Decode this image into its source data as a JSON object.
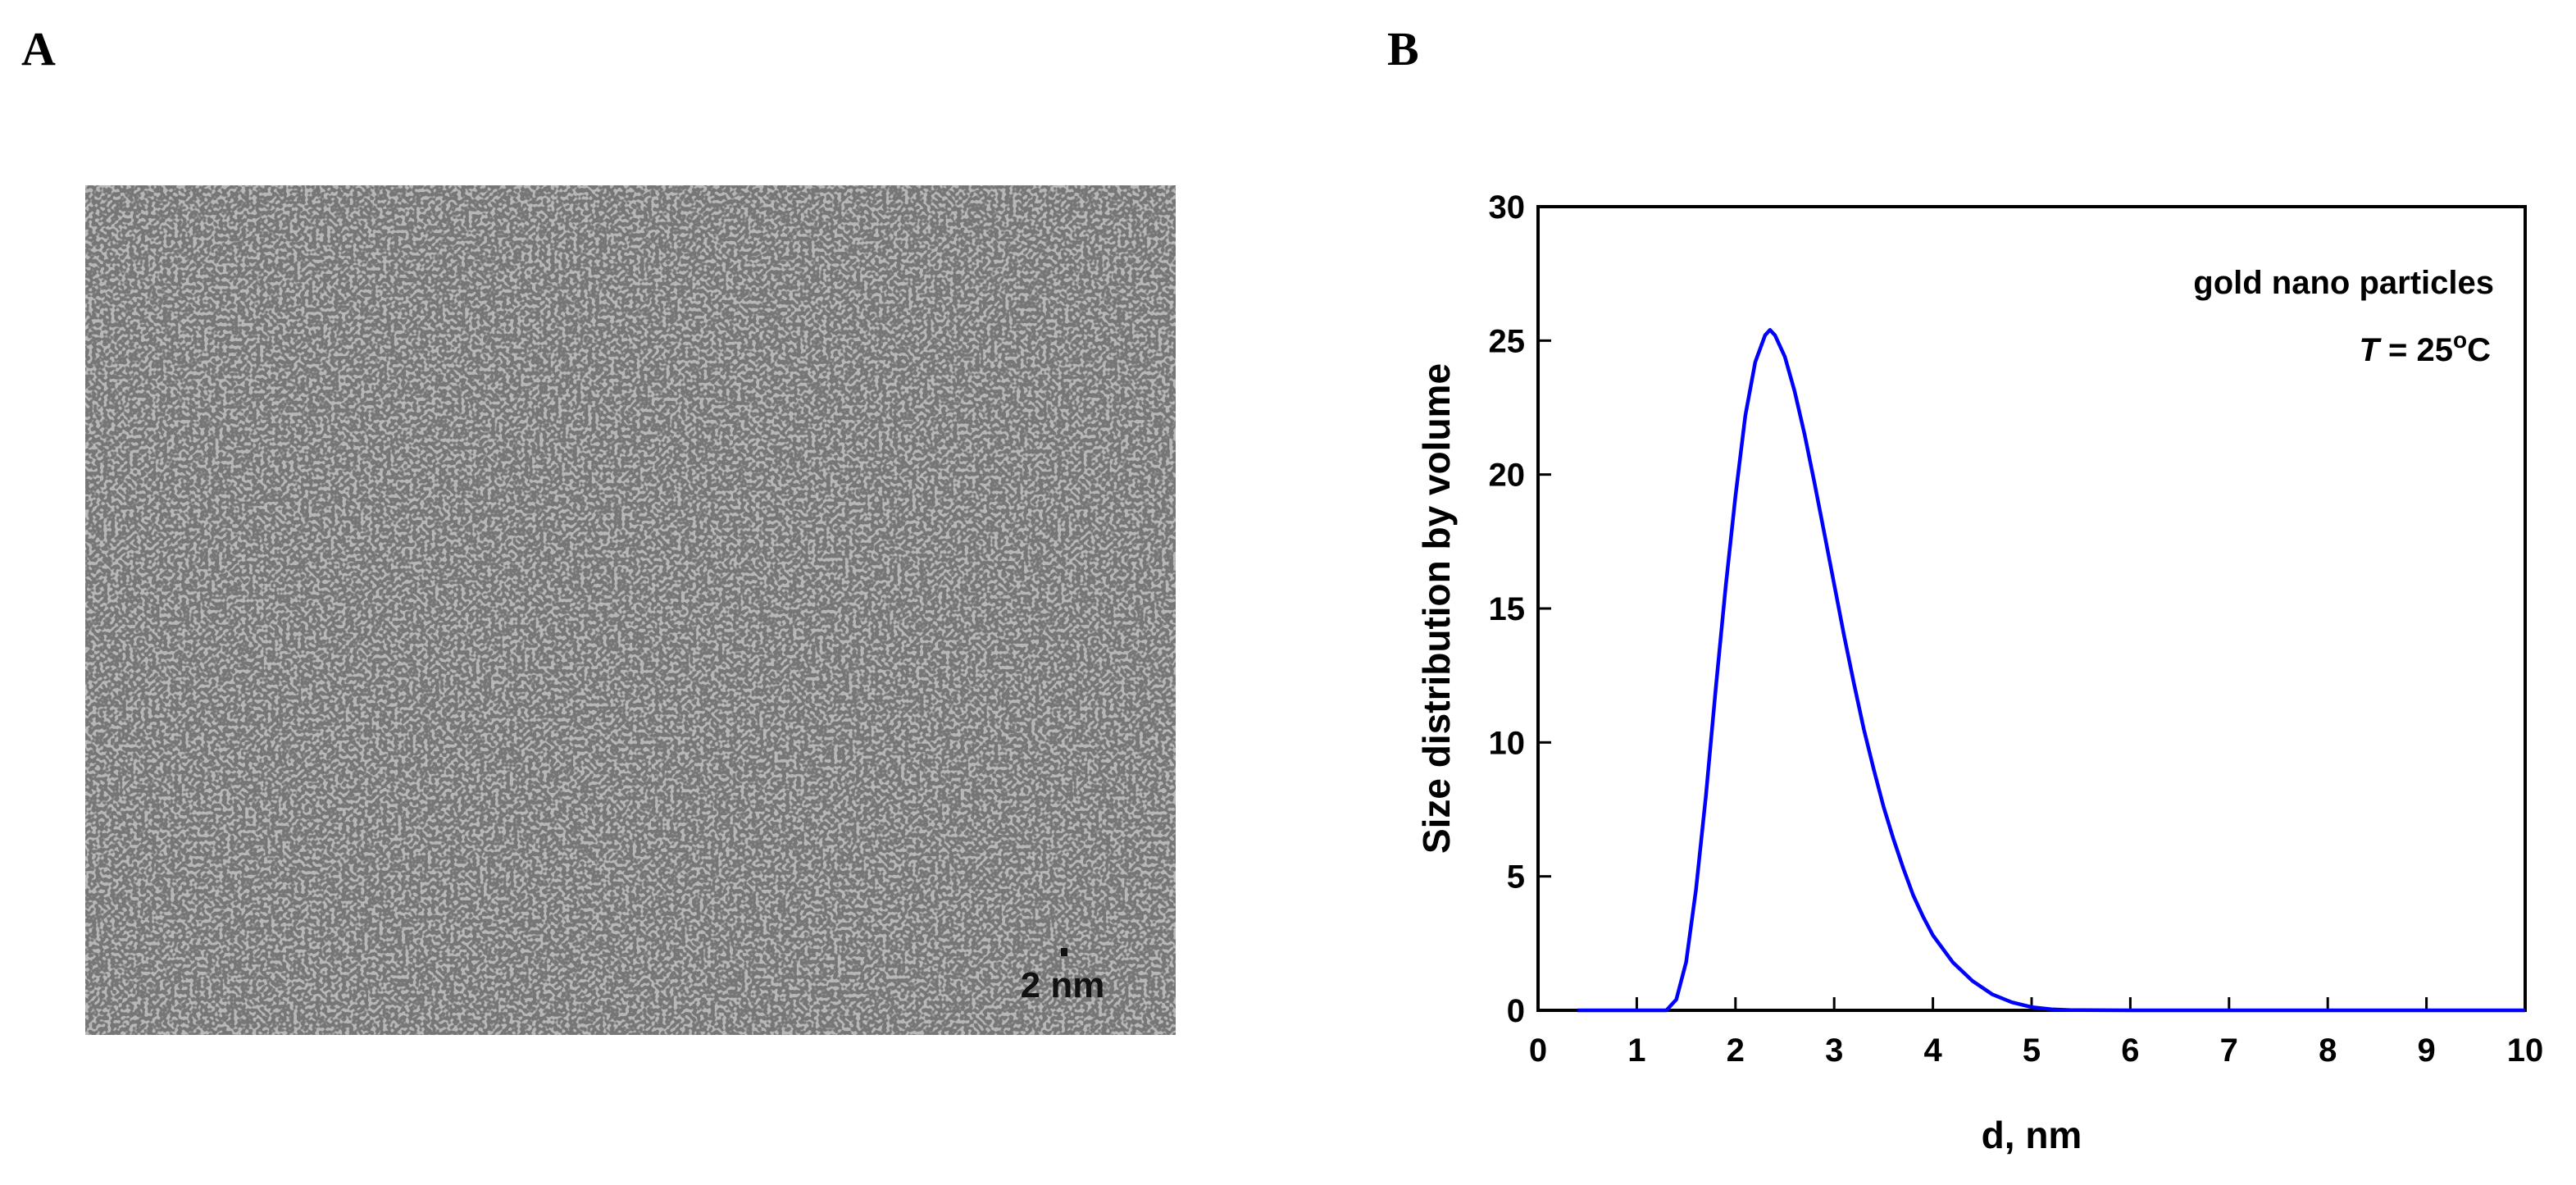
{
  "panels": {
    "a_label": "A",
    "b_label": "B"
  },
  "micrograph": {
    "scale_bar_label": "2 nm"
  },
  "chart_data": {
    "type": "line",
    "xlabel": "d, nm",
    "ylabel": "Size distribution by volume",
    "xlim": [
      0,
      10
    ],
    "ylim": [
      0,
      30
    ],
    "xticks": [
      "0",
      "1",
      "2",
      "3",
      "4",
      "5",
      "6",
      "7",
      "8",
      "9",
      "10"
    ],
    "yticks": [
      "0",
      "5",
      "10",
      "15",
      "20",
      "25",
      "30"
    ],
    "annotation_line1": "gold nano particles",
    "annotation_T": "T",
    "annotation_eq": " = 25",
    "annotation_deg": "o",
    "annotation_unit": "C",
    "series_color": "#0000ff",
    "series": [
      {
        "x": [
          0.4,
          1.0,
          1.3,
          1.4,
          1.5,
          1.6,
          1.7,
          1.8,
          1.9,
          2.0,
          2.1,
          2.2,
          2.3,
          2.35,
          2.4,
          2.5,
          2.6,
          2.7,
          2.8,
          2.9,
          3.0,
          3.1,
          3.2,
          3.3,
          3.4,
          3.5,
          3.6,
          3.7,
          3.8,
          3.9,
          4.0,
          4.2,
          4.4,
          4.6,
          4.8,
          5.0,
          5.2,
          5.4,
          6.0,
          7.0,
          8.0,
          9.0,
          10.0
        ],
        "y": [
          0,
          0,
          0,
          0.4,
          1.8,
          4.5,
          8.0,
          12.0,
          15.8,
          19.2,
          22.2,
          24.2,
          25.2,
          25.4,
          25.2,
          24.4,
          23.1,
          21.5,
          19.7,
          17.8,
          15.9,
          14.0,
          12.2,
          10.5,
          9.0,
          7.6,
          6.4,
          5.3,
          4.3,
          3.5,
          2.8,
          1.8,
          1.1,
          0.6,
          0.3,
          0.12,
          0.04,
          0.01,
          0,
          0,
          0,
          0,
          0
        ]
      }
    ]
  }
}
